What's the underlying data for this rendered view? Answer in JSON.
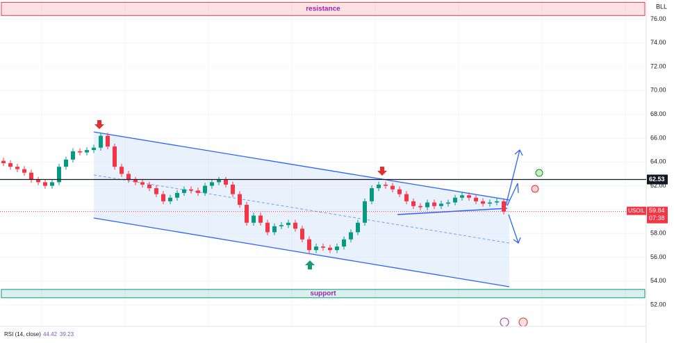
{
  "chart_data": {
    "type": "candlestick",
    "symbol": "USOIL",
    "axis_corner_label": "BLL",
    "open": [
      64.1,
      63.9,
      63.6,
      63.4,
      63.1,
      62.5,
      62.3,
      62.0,
      62.3,
      63.6,
      64.2,
      64.9,
      64.8,
      65.0,
      65.2,
      66.2,
      65.3,
      63.6,
      63.0,
      62.5,
      62.3,
      62.1,
      61.8,
      61.3,
      60.7,
      61.0,
      61.4,
      61.7,
      61.6,
      61.4,
      62.0,
      62.3,
      62.5,
      62.1,
      61.3,
      60.4,
      58.9,
      59.5,
      58.9,
      58.1,
      58.6,
      58.7,
      58.9,
      58.4,
      57.5,
      56.6,
      56.9,
      56.8,
      56.6,
      56.9,
      57.5,
      58.1,
      58.9,
      60.7,
      61.8,
      62.1,
      62.0,
      61.7,
      61.3,
      60.7,
      60.3,
      60.2,
      60.6,
      60.3,
      60.5,
      60.6,
      61.0,
      61.2,
      61.0,
      60.7,
      60.5,
      60.6,
      60.7
    ],
    "high": [
      64.35,
      64.15,
      63.85,
      63.65,
      63.35,
      62.75,
      62.55,
      62.55,
      63.85,
      64.45,
      65.15,
      65.15,
      65.25,
      65.45,
      66.45,
      66.45,
      65.55,
      63.85,
      63.25,
      62.75,
      62.55,
      62.35,
      62.05,
      61.55,
      61.25,
      61.65,
      61.95,
      61.95,
      61.85,
      62.25,
      62.55,
      62.75,
      62.75,
      62.35,
      61.55,
      60.65,
      59.75,
      59.75,
      59.15,
      58.85,
      58.95,
      59.15,
      59.15,
      58.65,
      57.75,
      57.15,
      57.15,
      57.05,
      57.15,
      57.75,
      58.35,
      59.15,
      60.95,
      62.05,
      62.35,
      62.35,
      62.25,
      61.95,
      61.55,
      60.95,
      60.55,
      60.85,
      60.85,
      60.75,
      60.85,
      61.25,
      61.45,
      61.45,
      61.25,
      60.95,
      60.85,
      60.95,
      60.95
    ],
    "low": [
      63.65,
      63.35,
      63.15,
      62.85,
      62.25,
      62.05,
      61.75,
      61.75,
      62.05,
      63.35,
      63.95,
      64.55,
      64.55,
      64.75,
      64.95,
      65.05,
      63.35,
      62.75,
      62.25,
      62.05,
      61.85,
      61.55,
      61.05,
      60.45,
      60.45,
      60.75,
      61.15,
      61.35,
      61.15,
      61.15,
      61.75,
      62.05,
      61.85,
      61.05,
      60.15,
      58.65,
      58.65,
      58.65,
      57.85,
      57.85,
      58.35,
      58.45,
      58.15,
      57.25,
      56.35,
      56.35,
      56.55,
      56.35,
      56.35,
      56.65,
      57.25,
      57.85,
      58.65,
      60.45,
      61.55,
      61.75,
      61.45,
      61.05,
      60.45,
      60.05,
      59.95,
      59.95,
      60.05,
      60.05,
      60.25,
      60.35,
      60.75,
      60.75,
      60.45,
      60.25,
      60.25,
      60.35,
      59.59
    ],
    "close": [
      63.9,
      63.6,
      63.4,
      63.1,
      62.5,
      62.3,
      62.0,
      62.3,
      63.6,
      64.2,
      64.9,
      64.8,
      65.0,
      65.2,
      66.2,
      65.3,
      63.6,
      63.0,
      62.5,
      62.3,
      62.1,
      61.8,
      61.3,
      60.7,
      61.0,
      61.4,
      61.7,
      61.6,
      61.4,
      62.0,
      62.3,
      62.5,
      62.1,
      61.3,
      60.4,
      58.9,
      59.5,
      58.9,
      58.1,
      58.6,
      58.7,
      58.9,
      58.4,
      57.5,
      56.6,
      56.9,
      56.8,
      56.6,
      56.9,
      57.5,
      58.1,
      58.9,
      60.7,
      61.8,
      62.1,
      62.0,
      61.7,
      61.3,
      60.7,
      60.3,
      60.2,
      60.6,
      60.3,
      60.5,
      60.6,
      61.0,
      61.2,
      61.0,
      60.7,
      60.5,
      60.6,
      60.7,
      59.84
    ],
    "up_color": "#089981",
    "down_color": "#f23645",
    "ylim": [
      50.2,
      77.6
    ],
    "yticks": [
      {
        "value": 52,
        "label": "52.00"
      },
      {
        "value": 54,
        "label": "54.00"
      },
      {
        "value": 56,
        "label": "56.00"
      },
      {
        "value": 58,
        "label": "58.00"
      },
      {
        "value": 60,
        "label": "60.00"
      },
      {
        "value": 62,
        "label": "62.00"
      },
      {
        "value": 64,
        "label": "64.00"
      },
      {
        "value": 66,
        "label": "66.00"
      },
      {
        "value": 68,
        "label": "68.00"
      },
      {
        "value": 70,
        "label": "70.00"
      },
      {
        "value": 72,
        "label": "72.00"
      },
      {
        "value": 74,
        "label": "74.00"
      },
      {
        "value": 76,
        "label": "76.00"
      }
    ],
    "grid": true,
    "level": 62.53,
    "last_price": 59.84,
    "countdown": "07:38",
    "zones": [
      {
        "name": "resistance",
        "low": 76.3,
        "high": 77.4,
        "color": "#f23645"
      },
      {
        "name": "support",
        "low": 52.6,
        "high": 53.3,
        "color": "#089981"
      }
    ],
    "indicator": {
      "name": "RSI (14, close)",
      "values": [
        44.42,
        39.23
      ]
    }
  }
}
